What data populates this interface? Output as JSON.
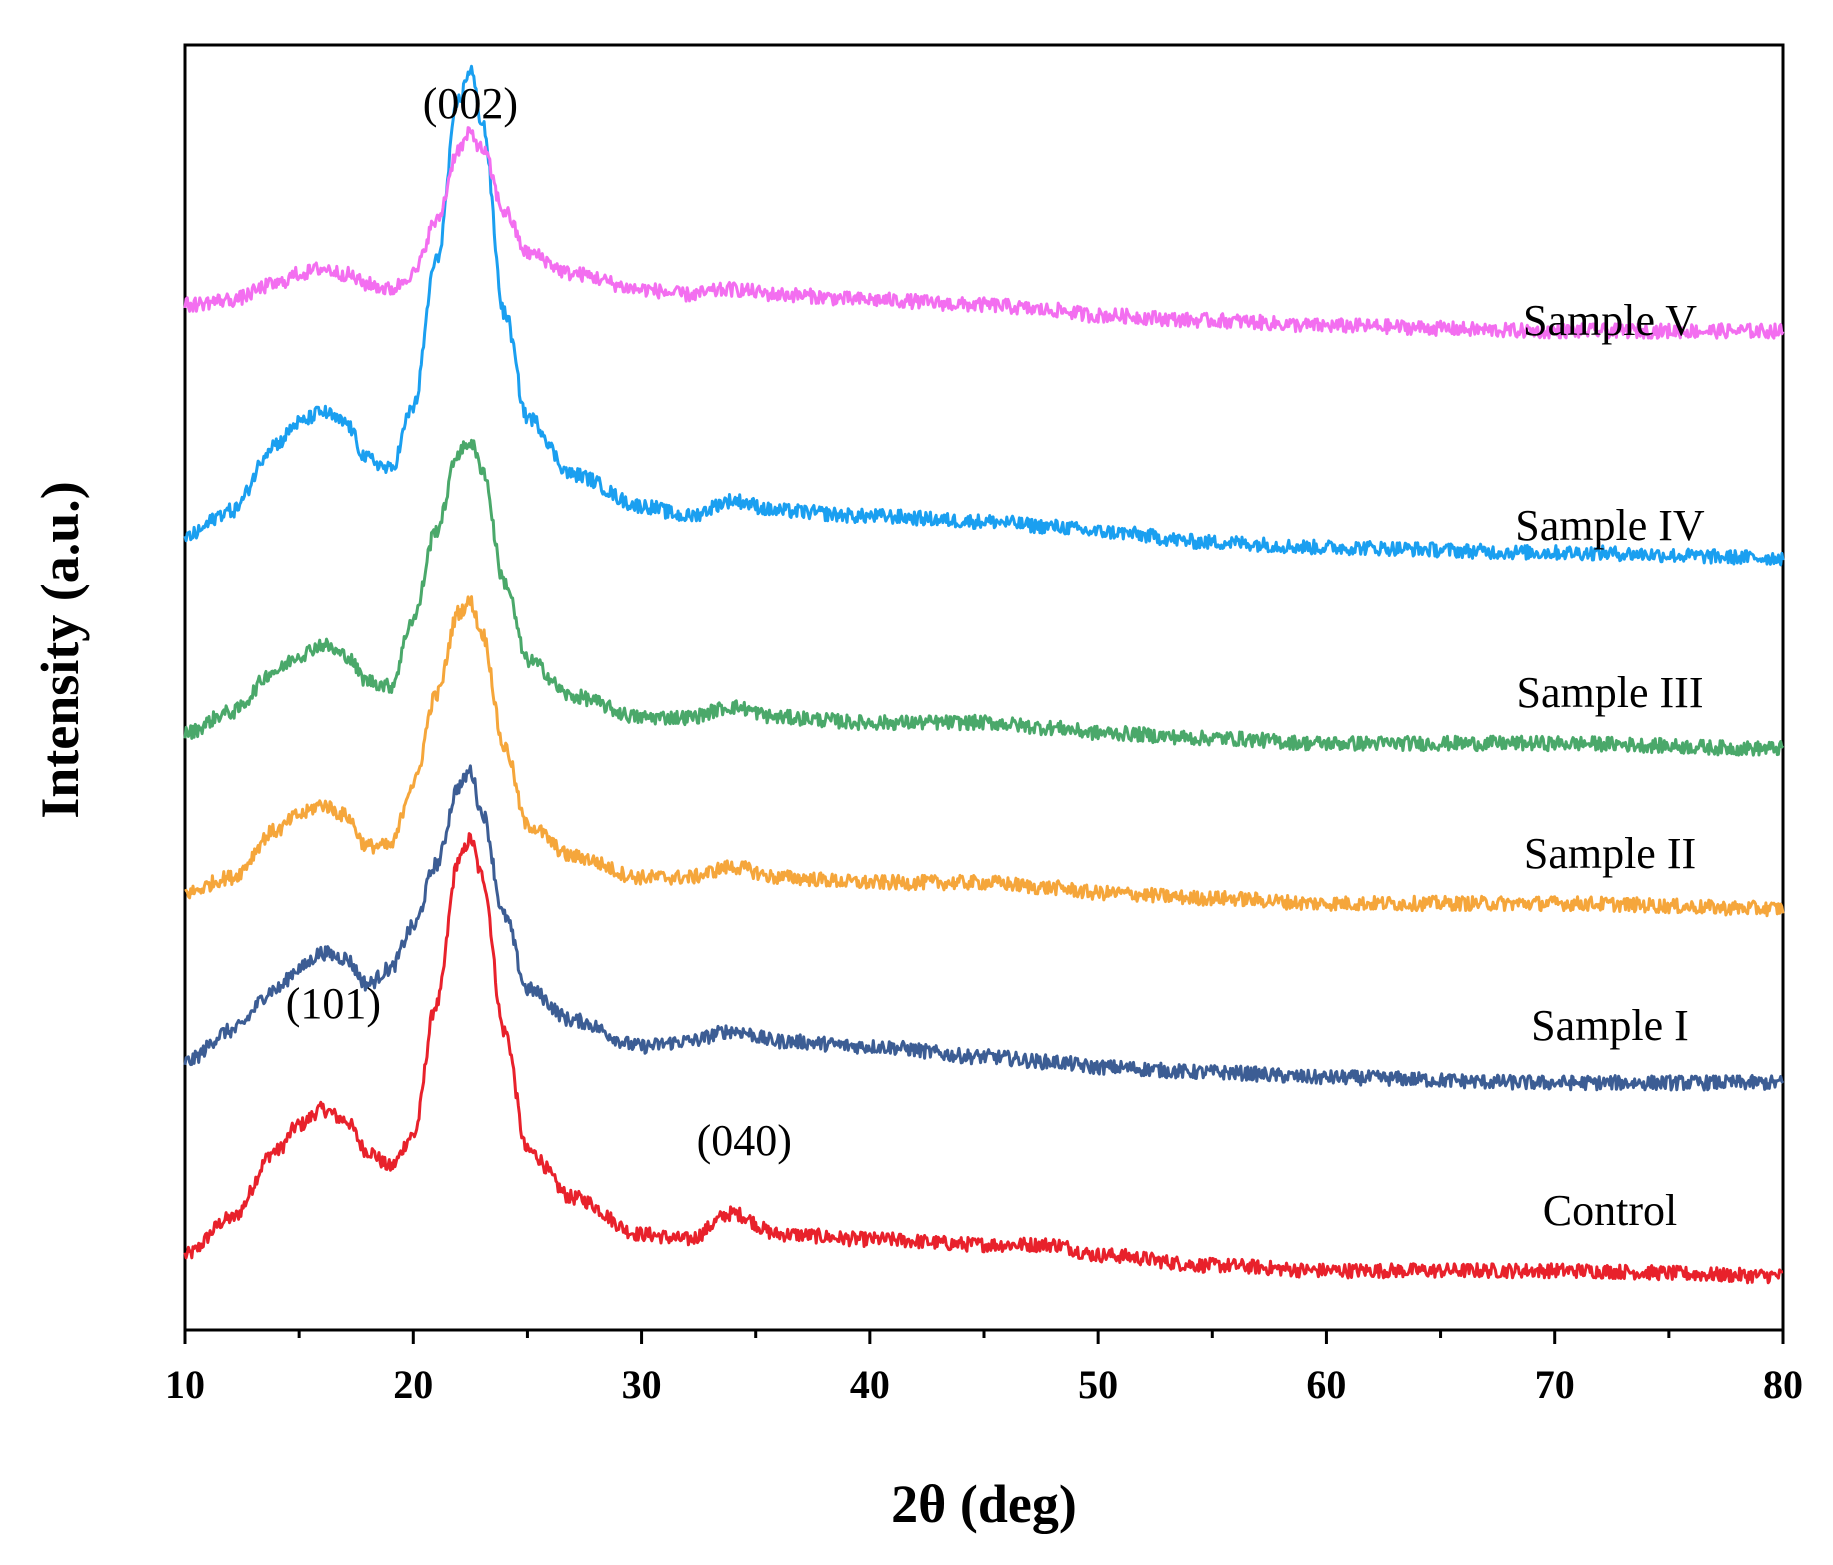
{
  "chart_data": {
    "type": "line",
    "title": "",
    "xlabel": "2θ (deg)",
    "ylabel": "Intensity (a.u.)",
    "xlim": [
      10,
      80
    ],
    "xticks": [
      10,
      20,
      30,
      40,
      50,
      60,
      70,
      80
    ],
    "y_tick_labels_shown": false,
    "grid": false,
    "legend": "labels placed at right end of each curve",
    "annotations": [
      {
        "text": "(002)",
        "x": 22.5
      },
      {
        "text": "(101)",
        "x": 16.5
      },
      {
        "text": "(040)",
        "x": 34.5
      }
    ],
    "series": [
      {
        "name": "Control",
        "color": "#e8212b",
        "x": [
          10,
          12,
          14,
          15,
          16,
          17,
          18,
          19,
          20,
          21,
          22,
          22.5,
          23,
          24,
          25,
          27,
          30,
          32,
          34,
          36,
          40,
          45,
          48,
          50,
          55,
          60,
          70,
          80
        ],
        "y": [
          0.02,
          0.09,
          0.22,
          0.27,
          0.3,
          0.28,
          0.22,
          0.19,
          0.25,
          0.5,
          0.78,
          0.82,
          0.75,
          0.45,
          0.22,
          0.13,
          0.06,
          0.05,
          0.1,
          0.06,
          0.05,
          0.04,
          0.04,
          0.02,
          0.0,
          -0.01,
          -0.01,
          -0.02
        ]
      },
      {
        "name": "Sample I",
        "color": "#3c5d94",
        "x": [
          10,
          12,
          14,
          15,
          16,
          17,
          18,
          19,
          20,
          21,
          22,
          22.5,
          23,
          24,
          25,
          27,
          30,
          32,
          34,
          36,
          40,
          45,
          48,
          50,
          55,
          60,
          70,
          80
        ],
        "y": [
          0.02,
          0.08,
          0.16,
          0.2,
          0.23,
          0.22,
          0.17,
          0.2,
          0.28,
          0.4,
          0.55,
          0.58,
          0.5,
          0.3,
          0.16,
          0.1,
          0.05,
          0.06,
          0.08,
          0.06,
          0.05,
          0.03,
          0.02,
          0.01,
          0.0,
          -0.01,
          -0.02,
          -0.02
        ]
      },
      {
        "name": "Sample II",
        "color": "#f5a63b",
        "x": [
          10,
          12,
          14,
          15,
          16,
          17,
          18,
          19,
          20,
          21,
          22,
          22.5,
          23,
          24,
          25,
          27,
          30,
          32,
          34,
          36,
          40,
          45,
          48,
          50,
          55,
          60,
          70,
          80
        ],
        "y": [
          0.02,
          0.05,
          0.14,
          0.17,
          0.19,
          0.17,
          0.11,
          0.11,
          0.23,
          0.4,
          0.56,
          0.58,
          0.52,
          0.3,
          0.15,
          0.09,
          0.05,
          0.05,
          0.07,
          0.05,
          0.04,
          0.04,
          0.03,
          0.02,
          0.01,
          0.0,
          0.0,
          -0.01
        ]
      },
      {
        "name": "Sample III",
        "color": "#4aa86a",
        "x": [
          10,
          12,
          14,
          15,
          16,
          17,
          18,
          19,
          20,
          21,
          22,
          22.5,
          23,
          24,
          25,
          27,
          30,
          32,
          34,
          36,
          40,
          45,
          48,
          50,
          55,
          60,
          70,
          80
        ],
        "y": [
          0.02,
          0.06,
          0.14,
          0.17,
          0.19,
          0.17,
          0.12,
          0.11,
          0.24,
          0.41,
          0.56,
          0.58,
          0.53,
          0.31,
          0.16,
          0.09,
          0.05,
          0.05,
          0.07,
          0.05,
          0.04,
          0.04,
          0.03,
          0.02,
          0.01,
          0.0,
          0.0,
          -0.01
        ]
      },
      {
        "name": "Sample IV",
        "color": "#1a9ff0",
        "x": [
          10,
          12,
          14,
          15,
          16,
          17,
          18,
          19,
          20,
          21,
          22,
          22.5,
          23,
          24,
          25,
          27,
          30,
          32,
          34,
          36,
          40,
          45,
          48,
          50,
          55,
          60,
          70,
          80
        ],
        "y": [
          0.02,
          0.07,
          0.2,
          0.24,
          0.26,
          0.24,
          0.17,
          0.15,
          0.27,
          0.55,
          0.86,
          0.92,
          0.82,
          0.45,
          0.25,
          0.14,
          0.08,
          0.06,
          0.09,
          0.07,
          0.06,
          0.05,
          0.04,
          0.03,
          0.01,
          0.0,
          -0.01,
          -0.02
        ]
      },
      {
        "name": "Sample V",
        "color": "#f36ef0",
        "x": [
          10,
          12,
          14,
          15,
          16,
          17,
          18,
          19,
          20,
          21,
          22,
          22.5,
          23,
          24,
          25,
          27,
          30,
          32,
          34,
          36,
          40,
          45,
          48,
          50,
          55,
          60,
          70,
          80
        ],
        "y": [
          0.02,
          0.03,
          0.06,
          0.08,
          0.09,
          0.08,
          0.06,
          0.05,
          0.08,
          0.18,
          0.32,
          0.35,
          0.32,
          0.2,
          0.12,
          0.08,
          0.05,
          0.04,
          0.05,
          0.04,
          0.03,
          0.02,
          0.01,
          0.0,
          -0.01,
          -0.02,
          -0.03,
          -0.03
        ]
      }
    ]
  }
}
